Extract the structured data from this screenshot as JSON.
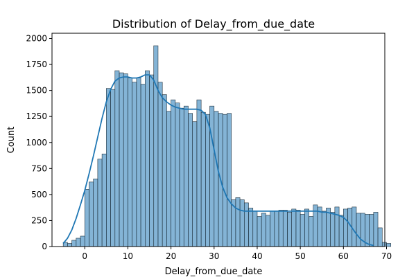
{
  "chart_data": {
    "type": "bar",
    "title": "Distribution of Delay_from_due_date",
    "xlabel": "Delay_from_due_date",
    "ylabel": "Count",
    "xlim": [
      -7.6,
      69.6
    ],
    "ylim": [
      0,
      2050
    ],
    "xticks": [
      0,
      10,
      20,
      30,
      40,
      50,
      60,
      70
    ],
    "yticks": [
      0,
      250,
      500,
      750,
      1000,
      1250,
      1500,
      1750,
      2000
    ],
    "grid": false,
    "bin_start": -5,
    "bin_width": 1,
    "values": [
      40,
      30,
      60,
      80,
      100,
      550,
      620,
      650,
      840,
      890,
      1520,
      1510,
      1690,
      1670,
      1660,
      1620,
      1580,
      1620,
      1560,
      1690,
      1650,
      1930,
      1580,
      1460,
      1300,
      1410,
      1380,
      1330,
      1350,
      1280,
      1200,
      1410,
      1290,
      1270,
      1350,
      1300,
      1280,
      1270,
      1280,
      450,
      470,
      450,
      420,
      370,
      340,
      290,
      320,
      300,
      340,
      340,
      350,
      350,
      330,
      360,
      350,
      310,
      360,
      290,
      400,
      380,
      340,
      370,
      330,
      380,
      300,
      360,
      370,
      380,
      320,
      320,
      310,
      310,
      330,
      180,
      40,
      30
    ],
    "kde": {
      "x": [
        -5,
        -4,
        -3,
        -2,
        -1,
        0,
        1,
        2,
        3,
        4,
        5,
        6,
        7,
        8,
        9,
        10,
        11,
        12,
        13,
        14,
        15,
        16,
        17,
        18,
        19,
        20,
        21,
        22,
        23,
        24,
        25,
        26,
        27,
        28,
        29,
        30,
        31,
        32,
        33,
        34,
        35,
        36,
        37,
        38,
        39,
        40,
        41,
        42,
        43,
        44,
        45,
        46,
        47,
        48,
        49,
        50,
        51,
        52,
        53,
        54,
        55,
        56,
        57,
        58,
        59,
        60,
        61,
        62,
        63,
        64,
        65,
        66,
        67
      ],
      "y": [
        30,
        80,
        160,
        270,
        400,
        540,
        700,
        870,
        1050,
        1230,
        1390,
        1510,
        1590,
        1620,
        1630,
        1630,
        1620,
        1620,
        1630,
        1650,
        1650,
        1600,
        1500,
        1430,
        1390,
        1360,
        1340,
        1330,
        1320,
        1320,
        1320,
        1320,
        1310,
        1270,
        1140,
        930,
        720,
        570,
        470,
        410,
        370,
        350,
        340,
        340,
        340,
        340,
        340,
        340,
        340,
        340,
        340,
        340,
        340,
        340,
        340,
        340,
        340,
        340,
        340,
        340,
        330,
        330,
        320,
        310,
        300,
        280,
        240,
        180,
        120,
        70,
        40,
        20,
        10
      ]
    }
  }
}
